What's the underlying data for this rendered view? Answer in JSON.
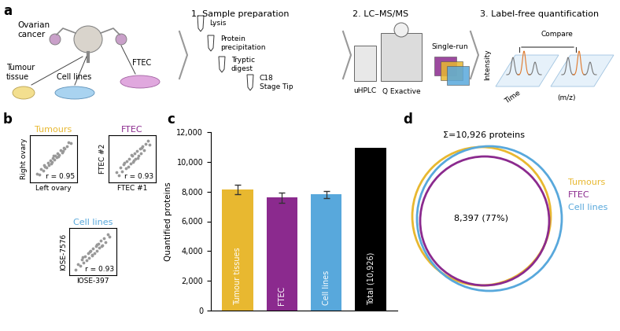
{
  "panel_labels": [
    "a",
    "b",
    "c",
    "d"
  ],
  "workflow": {
    "sources": {
      "title": "Ovarian\ncancer",
      "items": [
        "Tumour\ntissue",
        "Cell lines",
        "FTEC"
      ]
    },
    "steps": [
      {
        "title": "1. Sample preparation",
        "labels": [
          "Lysis",
          "Protein\nprecipitation",
          "Tryptic\ndigest",
          "C18\nStage Tip"
        ]
      },
      {
        "title": "2. LC–MS/MS",
        "labels": [
          "uHPLC",
          "Q Exactive",
          "Single-run"
        ]
      },
      {
        "title": "3. Label-free quantification",
        "labels": [
          "Compare",
          "Intensity",
          "Time",
          "(m/z)"
        ]
      }
    ]
  },
  "chart_data": [
    {
      "type": "scatter",
      "title": "Tumours",
      "x_label": "Left ovary",
      "y_label": "Right ovary",
      "annotation": "r = 0.95",
      "color": "#999999",
      "xlim": [
        0,
        10
      ],
      "ylim": [
        0,
        10
      ],
      "xticks": [],
      "yticks": [],
      "tick_labels": false,
      "x": [
        1.5,
        2.0,
        2.4,
        2.8,
        3.1,
        3.5,
        3.8,
        4.0,
        4.3,
        4.6,
        4.9,
        5.1,
        5.4,
        5.6,
        5.9,
        6.2,
        6.5,
        6.8,
        7.1,
        7.4,
        7.8,
        8.2,
        8.6,
        3.0,
        6.0,
        5.0,
        4.5,
        7.0
      ],
      "y": [
        1.8,
        1.7,
        2.8,
        2.5,
        3.4,
        3.2,
        4.1,
        3.7,
        4.6,
        4.3,
        5.2,
        4.8,
        5.7,
        5.3,
        6.1,
        5.9,
        6.8,
        6.4,
        7.3,
        7.2,
        7.6,
        8.5,
        8.4,
        3.6,
        5.5,
        5.6,
        4.0,
        6.6
      ]
    },
    {
      "type": "scatter",
      "title": "FTEC",
      "x_label": "FTEC #1",
      "y_label": "FTEC #2",
      "annotation": "r = 0.93",
      "color": "#999999",
      "xlim": [
        0,
        10
      ],
      "ylim": [
        0,
        10
      ],
      "xticks": [],
      "yticks": [],
      "tick_labels": false,
      "x": [
        1.6,
        2.1,
        2.5,
        2.9,
        3.2,
        3.6,
        3.9,
        4.1,
        4.4,
        4.7,
        5.0,
        5.2,
        5.5,
        5.7,
        6.0,
        6.3,
        6.6,
        6.9,
        7.2,
        7.5,
        7.9,
        8.3,
        8.7,
        3.3,
        6.1,
        4.8,
        5.3,
        7.0
      ],
      "y": [
        2.2,
        1.5,
        3.1,
        2.3,
        3.8,
        3.0,
        4.5,
        3.4,
        5.0,
        4.0,
        5.6,
        4.4,
        6.1,
        5.0,
        6.6,
        5.6,
        7.2,
        6.1,
        7.7,
        6.9,
        8.1,
        8.9,
        8.0,
        4.2,
        5.2,
        5.9,
        4.6,
        7.4
      ]
    },
    {
      "type": "scatter",
      "title": "Cell lines",
      "x_label": "IOSE-397",
      "y_label": "IOSE-7576",
      "annotation": "r = 0.93",
      "color": "#999999",
      "xlim": [
        0,
        10
      ],
      "ylim": [
        0,
        10
      ],
      "xticks": [],
      "yticks": [],
      "tick_labels": false,
      "x": [
        1.4,
        1.9,
        2.3,
        2.7,
        3.0,
        3.4,
        3.7,
        4.0,
        4.2,
        4.5,
        4.8,
        5.0,
        5.3,
        5.6,
        5.8,
        6.1,
        6.4,
        6.7,
        7.0,
        7.3,
        7.7,
        8.1,
        8.5,
        2.9,
        5.9,
        4.9,
        4.4,
        6.9
      ],
      "y": [
        1.2,
        2.3,
        2.0,
        3.3,
        2.6,
        4.0,
        3.2,
        4.6,
        3.7,
        5.2,
        4.2,
        5.7,
        4.7,
        6.2,
        5.2,
        6.7,
        5.8,
        7.3,
        6.3,
        7.8,
        7.0,
        8.6,
        8.2,
        3.9,
        6.5,
        4.3,
        5.0,
        6.1
      ]
    },
    {
      "type": "bar",
      "y_label": "Quantified proteins",
      "categories": [
        "Tumour tissues",
        "FTEC",
        "Cell lines",
        "Total (10,926)"
      ],
      "values": [
        8150,
        7600,
        7800,
        10926
      ],
      "errors": [
        300,
        350,
        250,
        null
      ],
      "colors": [
        "#e8b830",
        "#8b2a8e",
        "#58a8dc",
        "#000000"
      ],
      "ylim": [
        0,
        12000
      ],
      "yticks": [
        0,
        {
          "value": 2000,
          "label": "2,000"
        },
        {
          "value": 4000,
          "label": "4,000"
        },
        {
          "value": 6000,
          "label": "6,000"
        },
        {
          "value": 8000,
          "label": "8,000"
        },
        {
          "value": 10000,
          "label": "10,000"
        },
        {
          "value": 12000,
          "label": "12,000"
        }
      ]
    }
  ],
  "venn": {
    "title": "Σ=10,926 proteins",
    "overlap_label": "8,397 (77%)",
    "sets": [
      {
        "name": "Tumours",
        "color": "#e8b830"
      },
      {
        "name": "FTEC",
        "color": "#8b2a8e"
      },
      {
        "name": "Cell lines",
        "color": "#58a8dc"
      }
    ]
  }
}
